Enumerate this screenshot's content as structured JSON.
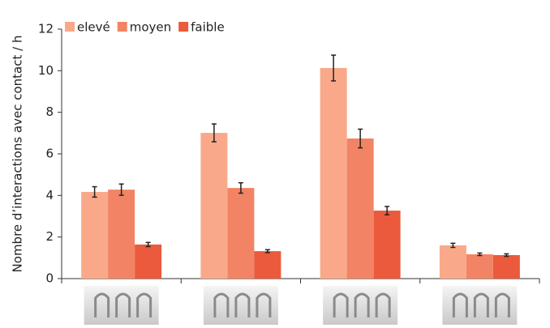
{
  "chart_data": {
    "type": "bar",
    "y_label": "Nombre d’interactions avec contact / h",
    "categories": [
      null,
      null,
      null,
      null
    ],
    "series": [
      {
        "name": "elevé",
        "color": "#f9a98a",
        "values": [
          4.17,
          7.01,
          10.13,
          1.6
        ],
        "errors": [
          0.25,
          0.43,
          0.62,
          0.1
        ]
      },
      {
        "name": "moyen",
        "color": "#f28465",
        "values": [
          4.28,
          4.36,
          6.74,
          1.17
        ],
        "errors": [
          0.27,
          0.25,
          0.45,
          0.06
        ]
      },
      {
        "name": "faible",
        "color": "#eb5a3c",
        "values": [
          1.64,
          1.32,
          3.27,
          1.13
        ],
        "errors": [
          0.1,
          0.07,
          0.2,
          0.06
        ]
      }
    ],
    "ylim": [
      0,
      12
    ],
    "yticks": [
      0,
      2,
      4,
      6,
      8,
      10,
      12
    ],
    "legend": "top-left"
  }
}
